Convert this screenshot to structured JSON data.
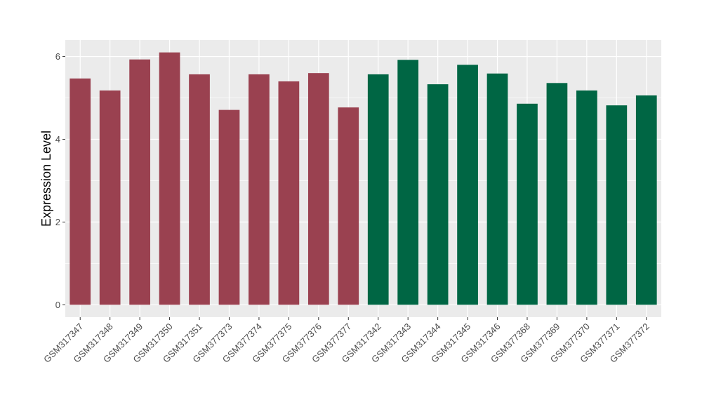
{
  "chart_data": {
    "type": "bar",
    "title": "",
    "xlabel": "",
    "ylabel": "Expression Level",
    "ylim": [
      -0.3,
      6.4
    ],
    "yticks": [
      0,
      2,
      4,
      6
    ],
    "grid": true,
    "legend": "none",
    "background": "#EBEBEB",
    "gridline_color": "#FFFFFF",
    "categories": [
      "GSM317347",
      "GSM317348",
      "GSM317349",
      "GSM317350",
      "GSM317351",
      "GSM377373",
      "GSM377374",
      "GSM377375",
      "GSM377376",
      "GSM377377",
      "GSM317342",
      "GSM317343",
      "GSM317344",
      "GSM317345",
      "GSM317346",
      "GSM377368",
      "GSM377369",
      "GSM377370",
      "GSM377371",
      "GSM377372"
    ],
    "values": [
      5.47,
      5.18,
      5.93,
      6.1,
      5.57,
      4.71,
      5.57,
      5.4,
      5.6,
      4.77,
      5.57,
      5.92,
      5.33,
      5.8,
      5.59,
      4.86,
      5.36,
      5.18,
      4.82,
      5.06
    ],
    "bar_colors": [
      "#9A4150",
      "#9A4150",
      "#9A4150",
      "#9A4150",
      "#9A4150",
      "#9A4150",
      "#9A4150",
      "#9A4150",
      "#9A4150",
      "#9A4150",
      "#006644",
      "#006644",
      "#006644",
      "#006644",
      "#006644",
      "#006644",
      "#006644",
      "#006644",
      "#006644",
      "#006644"
    ]
  }
}
